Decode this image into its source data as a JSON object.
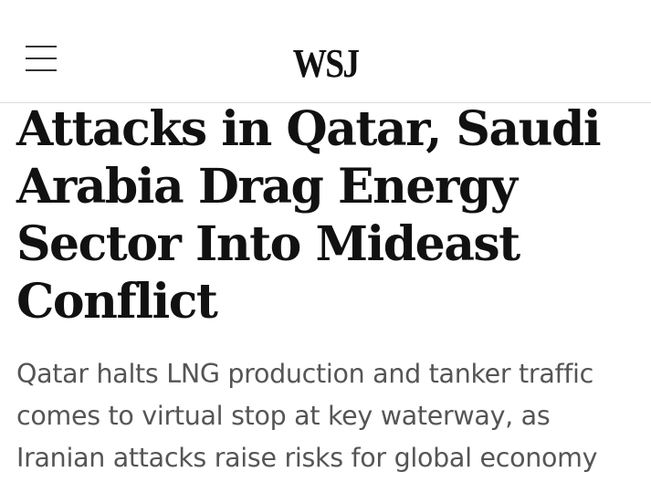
{
  "header": {
    "logo": "WSJ"
  },
  "article": {
    "headline": "Attacks in Qatar, Saudi Arabia Drag Energy Sector Into Mideast Conflict",
    "dek": "Qatar halts LNG production and tanker traffic comes to virtual stop at key waterway, as Iranian attacks raise risks for global economy"
  }
}
